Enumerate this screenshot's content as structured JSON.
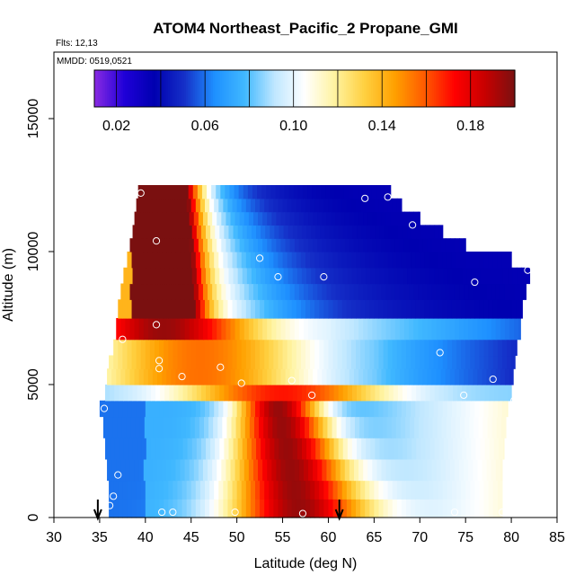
{
  "chart_data": {
    "type": "heatmap",
    "title": "ATOM4 Northeast_Pacific_2 Propane_GMI",
    "note_flights": "Flts: 12,13",
    "note_mmdd": "MMDD: 0519,0521",
    "xlabel": "Latitude (deg N)",
    "ylabel": "Altitude (m)",
    "xlim": [
      30,
      85
    ],
    "ylim": [
      0,
      17500
    ],
    "xticks": [
      30,
      35,
      40,
      45,
      50,
      55,
      60,
      65,
      70,
      75,
      80,
      85
    ],
    "yticks": [
      0,
      5000,
      10000,
      15000
    ],
    "colorbar": {
      "range": [
        0.01,
        0.2
      ],
      "ticks": [
        0.02,
        0.06,
        0.1,
        0.14,
        0.18
      ],
      "tick_labels": [
        "0.02",
        "0.06",
        "0.10",
        "0.14",
        "0.18"
      ],
      "colors": [
        "#8a2be2",
        "#1f00d8",
        "#0000b0",
        "#1530c8",
        "#1e90ff",
        "#40b8ff",
        "#bfe7ff",
        "#ffffff",
        "#fff3a0",
        "#ffd040",
        "#ffa000",
        "#ff5a00",
        "#ff0000",
        "#c80000",
        "#7a1010"
      ]
    },
    "bands": [
      {
        "alt": [
          0,
          700
        ],
        "lat": [
          36.0,
          79.0
        ]
      },
      {
        "alt": [
          700,
          1400
        ],
        "lat": [
          36.0,
          79.0
        ]
      },
      {
        "alt": [
          1400,
          2200
        ],
        "lat": [
          35.8,
          79.0
        ]
      },
      {
        "alt": [
          2200,
          3000
        ],
        "lat": [
          35.6,
          79.2
        ]
      },
      {
        "alt": [
          3000,
          3800
        ],
        "lat": [
          35.4,
          79.4
        ]
      },
      {
        "alt": [
          3800,
          4400
        ],
        "lat": [
          35.0,
          79.6
        ]
      },
      {
        "alt": [
          4400,
          5000
        ],
        "lat": [
          35.6,
          80.0
        ]
      },
      {
        "alt": [
          5000,
          5600
        ],
        "lat": [
          35.8,
          80.2
        ]
      },
      {
        "alt": [
          5600,
          6100
        ],
        "lat": [
          36.0,
          80.4
        ]
      },
      {
        "alt": [
          6100,
          6700
        ],
        "lat": [
          36.5,
          80.6
        ]
      },
      {
        "alt": [
          6700,
          7500
        ],
        "lat": [
          36.8,
          81.0
        ]
      },
      {
        "alt": [
          7500,
          8200
        ],
        "lat": [
          37.0,
          81.2
        ]
      },
      {
        "alt": [
          8200,
          8800
        ],
        "lat": [
          37.3,
          81.6
        ]
      },
      {
        "alt": [
          8800,
          9400
        ],
        "lat": [
          37.6,
          82.0
        ]
      },
      {
        "alt": [
          9400,
          10000
        ],
        "lat": [
          38.0,
          80.0
        ]
      },
      {
        "alt": [
          10000,
          10500
        ],
        "lat": [
          38.3,
          75.0
        ]
      },
      {
        "alt": [
          10500,
          11000
        ],
        "lat": [
          38.6,
          72.5
        ]
      },
      {
        "alt": [
          11000,
          11500
        ],
        "lat": [
          38.8,
          70.0
        ]
      },
      {
        "alt": [
          11500,
          12000
        ],
        "lat": [
          39.0,
          68.0
        ]
      },
      {
        "alt": [
          12000,
          12500
        ],
        "lat": [
          39.2,
          66.8
        ]
      }
    ],
    "samples": [
      {
        "lat": 39.5,
        "alt": 12200
      },
      {
        "lat": 64.0,
        "alt": 12000
      },
      {
        "lat": 66.5,
        "alt": 12050
      },
      {
        "lat": 69.2,
        "alt": 11000
      },
      {
        "lat": 41.2,
        "alt": 10400
      },
      {
        "lat": 52.5,
        "alt": 9750
      },
      {
        "lat": 54.5,
        "alt": 9050
      },
      {
        "lat": 59.5,
        "alt": 9050
      },
      {
        "lat": 76.0,
        "alt": 8850
      },
      {
        "lat": 81.8,
        "alt": 9300
      },
      {
        "lat": 41.2,
        "alt": 7250
      },
      {
        "lat": 37.5,
        "alt": 6700
      },
      {
        "lat": 72.2,
        "alt": 6200
      },
      {
        "lat": 41.5,
        "alt": 5900
      },
      {
        "lat": 41.5,
        "alt": 5600
      },
      {
        "lat": 48.2,
        "alt": 5650
      },
      {
        "lat": 44.0,
        "alt": 5300
      },
      {
        "lat": 50.5,
        "alt": 5050
      },
      {
        "lat": 56.0,
        "alt": 5150
      },
      {
        "lat": 58.2,
        "alt": 4600
      },
      {
        "lat": 74.8,
        "alt": 4600
      },
      {
        "lat": 78.0,
        "alt": 5200
      },
      {
        "lat": 80.3,
        "alt": 4400
      },
      {
        "lat": 35.5,
        "alt": 4100
      },
      {
        "lat": 37.0,
        "alt": 1600
      },
      {
        "lat": 36.5,
        "alt": 800
      },
      {
        "lat": 36.1,
        "alt": 450
      },
      {
        "lat": 41.8,
        "alt": 200
      },
      {
        "lat": 43.0,
        "alt": 200
      },
      {
        "lat": 49.8,
        "alt": 200
      },
      {
        "lat": 57.2,
        "alt": 150
      },
      {
        "lat": 73.8,
        "alt": 200
      },
      {
        "lat": 79.0,
        "alt": 200
      }
    ],
    "arrows": [
      {
        "lat": 34.8
      },
      {
        "lat": 61.2
      }
    ]
  }
}
